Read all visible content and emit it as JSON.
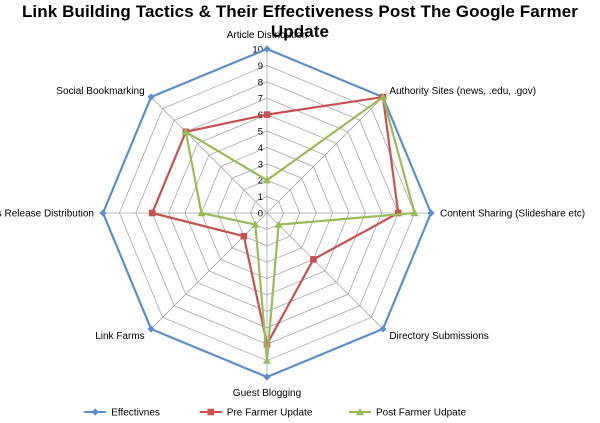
{
  "chart_data": {
    "type": "radar",
    "title": "Link Building Tactics & Their Effectiveness Post The Google Farmer Update",
    "categories": [
      "Article Distribution",
      "Authority Sites (news, .edu, .gov)",
      "Content Sharing (Slideshare etc)",
      "Directory Submissions",
      "Guest Blogging",
      "Link Farms",
      "Press Release Distribution",
      "Social Bookmarking"
    ],
    "rlim": [
      0,
      10
    ],
    "ticks": [
      "0",
      "1",
      "2",
      "3",
      "4",
      "5",
      "6",
      "7",
      "8",
      "9",
      "10"
    ],
    "grid": true,
    "legend_position": "bottom",
    "series": [
      {
        "name": "Effectivnes",
        "color": "#5b8fcb",
        "marker": "diamond",
        "values": [
          10,
          10,
          10,
          10,
          10,
          10,
          10,
          10
        ]
      },
      {
        "name": "Pre Farmer Update",
        "color": "#c9504f",
        "marker": "square",
        "values": [
          6,
          10,
          8,
          4,
          8,
          2,
          7,
          7
        ]
      },
      {
        "name": "Post Farmer Udpate",
        "color": "#9bbb59",
        "marker": "triangle",
        "values": [
          2,
          10,
          9,
          1,
          9,
          1,
          4,
          7
        ]
      }
    ]
  }
}
